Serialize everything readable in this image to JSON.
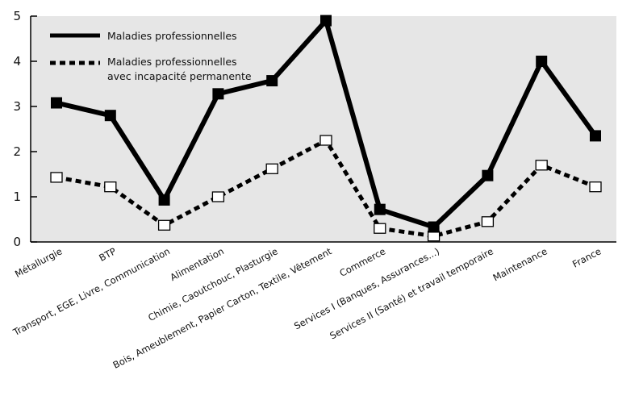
{
  "chart_data": {
    "type": "line",
    "categories": [
      "Métallurgie",
      "BTP",
      "Transport, EGE, Livre, Communication",
      "Alimentation",
      "Chimie, Caoutchouc, Plasturgie",
      "Bois, Ameublement, Papier Carton, Textile, Vêtement",
      "Commerce",
      "Services I (Banques, Assurances...)",
      "Services II (Santé) et travail temporaire",
      "Maintenance",
      "France"
    ],
    "series": [
      {
        "name": "Maladies professionnelles",
        "style": "solid",
        "color": "#000000",
        "values": [
          3.08,
          2.8,
          0.93,
          3.28,
          3.57,
          4.9,
          0.72,
          0.33,
          1.47,
          4.0,
          2.35
        ]
      },
      {
        "name": "Maladies professionnelles avec incapacité permanente",
        "name_lines": [
          "Maladies professionnelles",
          "avec incapacité permanente"
        ],
        "style": "dotted",
        "color": "#000000",
        "values": [
          1.43,
          1.22,
          0.37,
          1.0,
          1.62,
          2.25,
          0.3,
          0.13,
          0.45,
          1.7,
          1.22
        ]
      }
    ],
    "y_ticks": [
      0,
      1,
      2,
      3,
      4,
      5
    ],
    "ylim": [
      0,
      5
    ],
    "plot_background": "#e6e6e6",
    "grid": false,
    "legend_position": "top-left"
  }
}
